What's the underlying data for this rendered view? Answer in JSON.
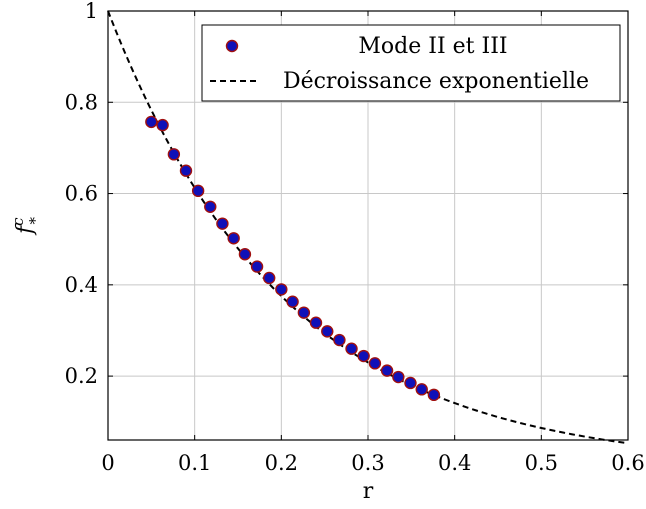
{
  "chart_data": {
    "type": "scatter",
    "title": "",
    "xlabel": "r",
    "ylabel": "f_*^c",
    "xlim": [
      0,
      0.6
    ],
    "ylim": [
      0.06,
      1.0
    ],
    "xticks": [
      0,
      0.1,
      0.2,
      0.3,
      0.4,
      0.5,
      0.6
    ],
    "xtick_labels": [
      "0",
      "0.1",
      "0.2",
      "0.3",
      "0.4",
      "0.5",
      "0.6"
    ],
    "yticks": [
      0.2,
      0.4,
      0.6,
      0.8,
      1.0
    ],
    "ytick_labels": [
      "0.2",
      "0.4",
      "0.6",
      "0.8",
      "1"
    ],
    "grid": true,
    "legend_position": "top-right",
    "series": [
      {
        "name": "Mode II et III",
        "kind": "markers",
        "marker_fill": "#1010b8",
        "marker_edge": "#a01010",
        "x": [
          0.05,
          0.063,
          0.076,
          0.09,
          0.104,
          0.118,
          0.132,
          0.145,
          0.158,
          0.172,
          0.186,
          0.2,
          0.213,
          0.226,
          0.24,
          0.253,
          0.267,
          0.281,
          0.295,
          0.308,
          0.322,
          0.335,
          0.349,
          0.362,
          0.376
        ],
        "y": [
          0.757,
          0.75,
          0.686,
          0.65,
          0.606,
          0.571,
          0.534,
          0.502,
          0.467,
          0.44,
          0.415,
          0.39,
          0.363,
          0.339,
          0.317,
          0.298,
          0.279,
          0.26,
          0.244,
          0.228,
          0.212,
          0.198,
          0.185,
          0.171,
          0.159
        ]
      },
      {
        "name": "Décroissance exponentielle",
        "kind": "dashed-line",
        "color": "#000000",
        "function": "exp(-4.9*r)",
        "x": [
          0,
          0.05,
          0.1,
          0.15,
          0.2,
          0.25,
          0.3,
          0.35,
          0.4,
          0.45,
          0.5,
          0.55,
          0.6
        ],
        "y": [
          1.0,
          0.783,
          0.613,
          0.479,
          0.375,
          0.294,
          0.23,
          0.18,
          0.141,
          0.11,
          0.086,
          0.068,
          0.053
        ]
      }
    ]
  }
}
